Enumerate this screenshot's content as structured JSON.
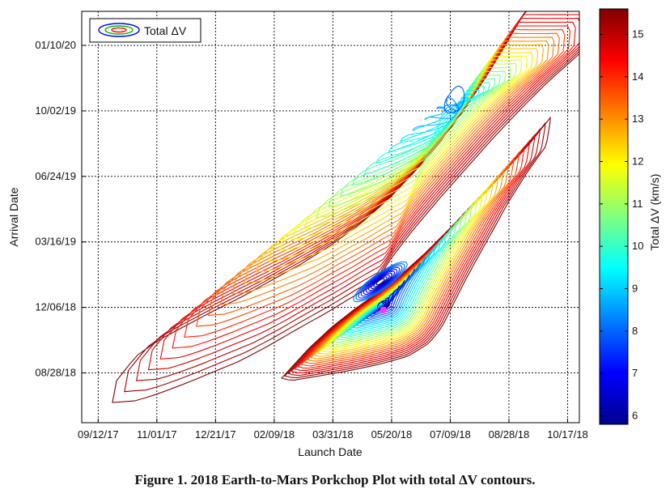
{
  "caption": "Figure 1.  2018 Earth-to-Mars Porkchop Plot with total ΔV contours.",
  "chart_data": {
    "type": "contour",
    "xlabel": "Launch Date",
    "ylabel": "Arrival Date",
    "colorbar_label": "Total ΔV (km/s)",
    "legend": {
      "label": "Total ΔV",
      "position": "top-left"
    },
    "grid": true,
    "x_ticks": [
      "09/12/17",
      "11/01/17",
      "12/21/17",
      "02/09/18",
      "03/31/18",
      "05/20/18",
      "07/09/18",
      "08/28/18",
      "10/17/18"
    ],
    "y_ticks": [
      "08/28/18",
      "12/06/18",
      "03/16/19",
      "06/24/19",
      "10/02/19",
      "01/10/20"
    ],
    "xlim": [
      "2017-08-29",
      "2018-10-27"
    ],
    "ylim": [
      "2018-06-13",
      "2020-03-02"
    ],
    "colorbar": {
      "min": 5.8,
      "max": 15.6,
      "ticks": [
        6,
        7,
        8,
        9,
        10,
        11,
        12,
        13,
        14,
        15
      ]
    },
    "contour_levels": {
      "min": 6.0,
      "max": 15.5
    },
    "minimum": {
      "launch": "2018-05-13",
      "arrival": "2018-12-02",
      "total_dv_kms": 5.8
    },
    "colormap": [
      "#00008f",
      "#0000ff",
      "#0080ff",
      "#00ffff",
      "#80ff80",
      "#ffff00",
      "#ff8000",
      "#ff0000",
      "#800000"
    ],
    "marker_color": "#ff33ff"
  }
}
